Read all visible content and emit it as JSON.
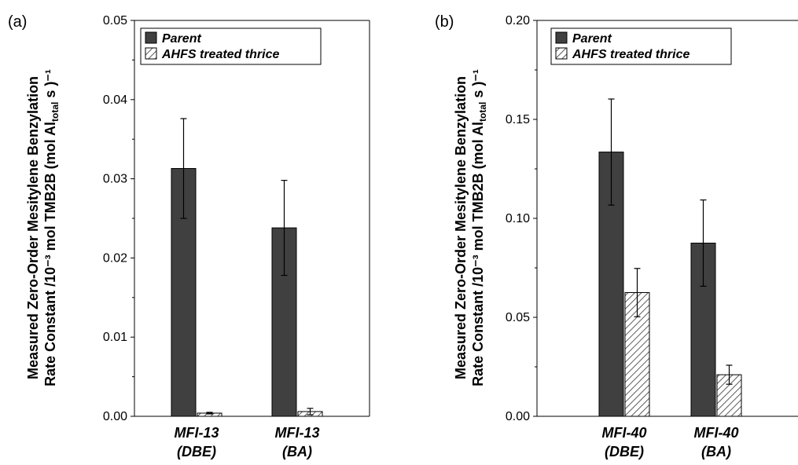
{
  "chart_data": [
    {
      "type": "bar",
      "panel_label": "(a)",
      "categories": [
        [
          "MFI-13",
          "(DBE)"
        ],
        [
          "MFI-13",
          "(BA)"
        ]
      ],
      "series": [
        {
          "name": "Parent",
          "values": [
            0.0313,
            0.0238
          ],
          "errors": [
            0.0063,
            0.006
          ],
          "color": "#404040",
          "pattern": "solid"
        },
        {
          "name": "AHFS treated thrice",
          "values": [
            0.0004,
            0.0006
          ],
          "errors": [
            0.0001,
            0.0004
          ],
          "color": "#ffffff",
          "pattern": "hatch"
        }
      ],
      "ylim": [
        0,
        0.05
      ],
      "yticks": [
        "0.00",
        "0.01",
        "0.02",
        "0.03",
        "0.04",
        "0.05"
      ],
      "ylabel_line1": "Measured Zero-Order Mesitylene Benzylation",
      "ylabel_line2": "Rate Constant /10⁻³ mol TMB2B (mol Al",
      "ylabel_sub": "total",
      "ylabel_tail": " s",
      "ylabel_end": ")⁻¹",
      "legend_position": "top-left"
    },
    {
      "type": "bar",
      "panel_label": "(b)",
      "categories": [
        [
          "MFI-40",
          "(DBE)"
        ],
        [
          "MFI-40",
          "(BA)"
        ]
      ],
      "series": [
        {
          "name": "Parent",
          "values": [
            0.1335,
            0.0875
          ],
          "errors": [
            0.0268,
            0.0218
          ],
          "color": "#404040",
          "pattern": "solid"
        },
        {
          "name": "AHFS treated thrice",
          "values": [
            0.0625,
            0.021
          ],
          "errors": [
            0.0122,
            0.0048
          ],
          "color": "#ffffff",
          "pattern": "hatch"
        }
      ],
      "ylim": [
        0,
        0.2
      ],
      "yticks": [
        "0.00",
        "0.05",
        "0.10",
        "0.15",
        "0.20"
      ],
      "ylabel_line1": "Measured Zero-Order Mesitylene Benzylation",
      "ylabel_line2": "Rate Constant /10⁻³ mol TMB2B (mol Al",
      "ylabel_sub": "total",
      "ylabel_tail": " s",
      "ylabel_end": ")⁻¹",
      "legend_position": "top-left"
    }
  ]
}
